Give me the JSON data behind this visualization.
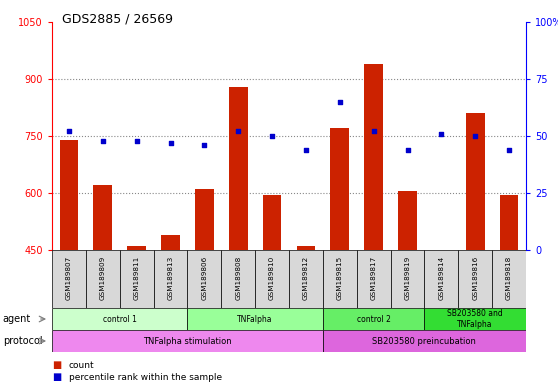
{
  "title": "GDS2885 / 26569",
  "samples": [
    "GSM189807",
    "GSM189809",
    "GSM189811",
    "GSM189813",
    "GSM189806",
    "GSM189808",
    "GSM189810",
    "GSM189812",
    "GSM189815",
    "GSM189817",
    "GSM189819",
    "GSM189814",
    "GSM189816",
    "GSM189818"
  ],
  "counts": [
    740,
    620,
    460,
    490,
    610,
    880,
    595,
    460,
    770,
    940,
    605,
    450,
    810,
    595
  ],
  "percentiles": [
    52,
    48,
    48,
    47,
    46,
    52,
    50,
    44,
    65,
    52,
    44,
    51,
    50,
    44
  ],
  "ylim_left": [
    450,
    1050
  ],
  "ylim_right": [
    0,
    100
  ],
  "yticks_left": [
    450,
    600,
    750,
    900,
    1050
  ],
  "yticks_right": [
    0,
    25,
    50,
    75,
    100
  ],
  "ytick_right_labels": [
    "0",
    "25",
    "50",
    "75",
    "100%"
  ],
  "agent_groups": [
    {
      "label": "control 1",
      "start": 0,
      "end": 4,
      "color": "#ccffcc"
    },
    {
      "label": "TNFalpha",
      "start": 4,
      "end": 8,
      "color": "#99ff99"
    },
    {
      "label": "control 2",
      "start": 8,
      "end": 11,
      "color": "#66ee66"
    },
    {
      "label": "SB203580 and\nTNFalpha",
      "start": 11,
      "end": 14,
      "color": "#33dd33"
    }
  ],
  "protocol_groups": [
    {
      "label": "TNFalpha stimulation",
      "start": 0,
      "end": 8,
      "color": "#ee88ee"
    },
    {
      "label": "SB203580 preincubation",
      "start": 8,
      "end": 14,
      "color": "#dd66dd"
    }
  ],
  "bar_color": "#cc2200",
  "dot_color": "#0000cc",
  "grid_color": "#888888",
  "sample_row_color": "#d8d8d8",
  "legend_count_label": "count",
  "legend_pct_label": "percentile rank within the sample",
  "agent_label": "agent",
  "protocol_label": "protocol"
}
